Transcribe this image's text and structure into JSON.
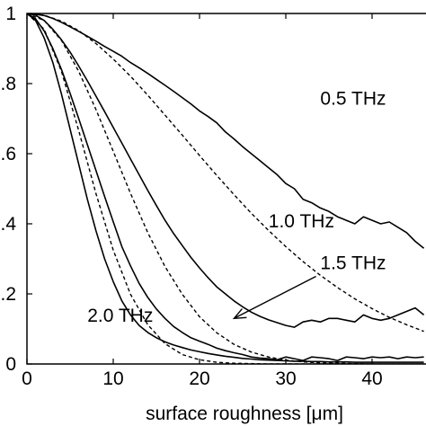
{
  "chart_data": {
    "type": "line",
    "title": "",
    "xlabel": "surface roughness [μm]",
    "ylabel": "",
    "xlim": [
      0,
      46
    ],
    "ylim": [
      0,
      1
    ],
    "x_ticks": [
      0,
      10,
      20,
      30,
      40
    ],
    "x_tick_labels": [
      "0",
      "10",
      "20",
      "30",
      "40"
    ],
    "y_ticks": [
      0,
      0.2,
      0.4,
      0.6,
      0.8,
      1
    ],
    "y_tick_labels": [
      "0",
      ".2",
      ".4",
      ".6",
      ".8",
      "1"
    ],
    "grid": false,
    "legend": "none",
    "annotations": [
      {
        "text": "0.5 THz",
        "x": 34,
        "y": 0.74
      },
      {
        "text": "1.0 THz",
        "x": 28,
        "y": 0.39
      },
      {
        "text": "1.5 THz",
        "x": 34,
        "y": 0.27
      },
      {
        "text": "2.0 THz",
        "x": 7,
        "y": 0.12
      }
    ],
    "arrow": {
      "from": [
        33.5,
        0.25
      ],
      "to": [
        24,
        0.13
      ]
    },
    "series": [
      {
        "style": "solid",
        "x": [
          0,
          1,
          2,
          3,
          4,
          5,
          6,
          7,
          8,
          9,
          10,
          11,
          12,
          13,
          14,
          15,
          16,
          17,
          18,
          19,
          20,
          21,
          22,
          23,
          24,
          25,
          26,
          27,
          28,
          29,
          30,
          31,
          32,
          33,
          34,
          35,
          36,
          37,
          38,
          39,
          40,
          41,
          42,
          43,
          44,
          45,
          46
        ],
        "y": [
          1.0,
          0.998,
          0.994,
          0.986,
          0.975,
          0.962,
          0.949,
          0.935,
          0.921,
          0.906,
          0.892,
          0.878,
          0.86,
          0.845,
          0.829,
          0.812,
          0.795,
          0.778,
          0.76,
          0.742,
          0.722,
          0.706,
          0.688,
          0.662,
          0.642,
          0.62,
          0.6,
          0.58,
          0.56,
          0.54,
          0.515,
          0.5,
          0.47,
          0.46,
          0.445,
          0.435,
          0.42,
          0.41,
          0.4,
          0.42,
          0.41,
          0.4,
          0.405,
          0.39,
          0.375,
          0.35,
          0.33
        ]
      },
      {
        "style": "dashed",
        "x": [
          0,
          2,
          4,
          6,
          8,
          10,
          12,
          14,
          16,
          18,
          20,
          22,
          24,
          26,
          28,
          30,
          32,
          34,
          36,
          38,
          40,
          42,
          44,
          46
        ],
        "y": [
          1.0,
          0.995,
          0.978,
          0.951,
          0.914,
          0.87,
          0.821,
          0.767,
          0.71,
          0.653,
          0.595,
          0.538,
          0.483,
          0.43,
          0.381,
          0.335,
          0.292,
          0.253,
          0.218,
          0.186,
          0.158,
          0.133,
          0.112,
          0.093
        ]
      },
      {
        "style": "solid",
        "x": [
          0,
          1,
          2,
          3,
          4,
          5,
          6,
          7,
          8,
          9,
          10,
          11,
          12,
          13,
          14,
          15,
          16,
          17,
          18,
          19,
          20,
          21,
          22,
          23,
          24,
          25,
          26,
          27,
          28,
          29,
          30,
          31,
          32,
          33,
          34,
          35,
          36,
          37,
          38,
          39,
          40,
          41,
          42,
          43,
          44,
          45,
          46
        ],
        "y": [
          1.0,
          0.995,
          0.98,
          0.955,
          0.925,
          0.89,
          0.85,
          0.808,
          0.764,
          0.72,
          0.675,
          0.63,
          0.585,
          0.54,
          0.495,
          0.452,
          0.41,
          0.372,
          0.338,
          0.304,
          0.274,
          0.246,
          0.22,
          0.2,
          0.18,
          0.163,
          0.148,
          0.136,
          0.126,
          0.118,
          0.11,
          0.105,
          0.12,
          0.125,
          0.12,
          0.13,
          0.13,
          0.125,
          0.12,
          0.14,
          0.13,
          0.125,
          0.13,
          0.14,
          0.15,
          0.16,
          0.14
        ]
      },
      {
        "style": "dashed",
        "x": [
          0,
          2,
          4,
          6,
          8,
          10,
          12,
          14,
          16,
          18,
          20,
          22,
          24,
          26,
          28,
          30,
          32,
          34,
          36,
          38,
          40,
          42,
          44,
          46
        ],
        "y": [
          1.0,
          0.98,
          0.923,
          0.835,
          0.726,
          0.607,
          0.487,
          0.375,
          0.278,
          0.199,
          0.135,
          0.089,
          0.056,
          0.034,
          0.02,
          0.011,
          0.006,
          0.003,
          0.002,
          0.001,
          0.0,
          0.0,
          0.0,
          0.0
        ]
      },
      {
        "style": "solid",
        "x": [
          0,
          1,
          2,
          3,
          4,
          5,
          6,
          7,
          8,
          9,
          10,
          11,
          12,
          13,
          14,
          15,
          16,
          17,
          18,
          19,
          20,
          21,
          22,
          23,
          24,
          25,
          26,
          27,
          28,
          29,
          30,
          31,
          32,
          33,
          34,
          35,
          36,
          37,
          38,
          39,
          40,
          41,
          42,
          43,
          44,
          45,
          46
        ],
        "y": [
          1.0,
          0.985,
          0.95,
          0.9,
          0.84,
          0.772,
          0.7,
          0.626,
          0.552,
          0.478,
          0.406,
          0.335,
          0.28,
          0.23,
          0.19,
          0.157,
          0.13,
          0.107,
          0.09,
          0.075,
          0.065,
          0.056,
          0.045,
          0.038,
          0.032,
          0.027,
          0.02,
          0.017,
          0.015,
          0.012,
          0.02,
          0.015,
          0.01,
          0.02,
          0.018,
          0.015,
          0.01,
          0.02,
          0.018,
          0.015,
          0.02,
          0.018,
          0.02,
          0.015,
          0.02,
          0.018,
          0.02
        ]
      },
      {
        "style": "solid",
        "x": [
          0,
          1,
          2,
          3,
          4,
          5,
          6,
          7,
          8,
          9,
          10,
          11,
          12,
          13,
          14,
          15,
          16,
          17,
          18,
          19,
          20,
          21,
          22,
          23,
          24,
          25,
          26,
          27,
          28,
          29,
          30,
          31,
          32,
          33,
          34,
          35,
          36,
          37,
          38,
          39,
          40,
          41,
          42,
          43,
          44,
          45,
          46
        ],
        "y": [
          1.0,
          0.98,
          0.93,
          0.86,
          0.77,
          0.67,
          0.57,
          0.47,
          0.38,
          0.3,
          0.235,
          0.18,
          0.14,
          0.11,
          0.09,
          0.075,
          0.063,
          0.054,
          0.047,
          0.04,
          0.035,
          0.03,
          0.026,
          0.022,
          0.019,
          0.016,
          0.014,
          0.012,
          0.011,
          0.01,
          0.009,
          0.008,
          0.008,
          0.007,
          0.007,
          0.006,
          0.006,
          0.006,
          0.005,
          0.005,
          0.005,
          0.005,
          0.005,
          0.005,
          0.005,
          0.005,
          0.005
        ]
      },
      {
        "style": "dashed",
        "x": [
          0,
          2,
          4,
          6,
          8,
          10,
          12,
          14,
          16,
          18,
          20,
          22,
          24,
          26,
          28,
          30,
          32,
          34,
          36,
          38,
          40,
          42,
          44,
          46
        ],
        "y": [
          1.0,
          0.955,
          0.835,
          0.666,
          0.486,
          0.325,
          0.199,
          0.112,
          0.058,
          0.027,
          0.012,
          0.005,
          0.002,
          0.001,
          0.0,
          0.0,
          0.0,
          0.0,
          0.0,
          0.0,
          0.0,
          0.0,
          0.0,
          0.0
        ]
      }
    ]
  }
}
